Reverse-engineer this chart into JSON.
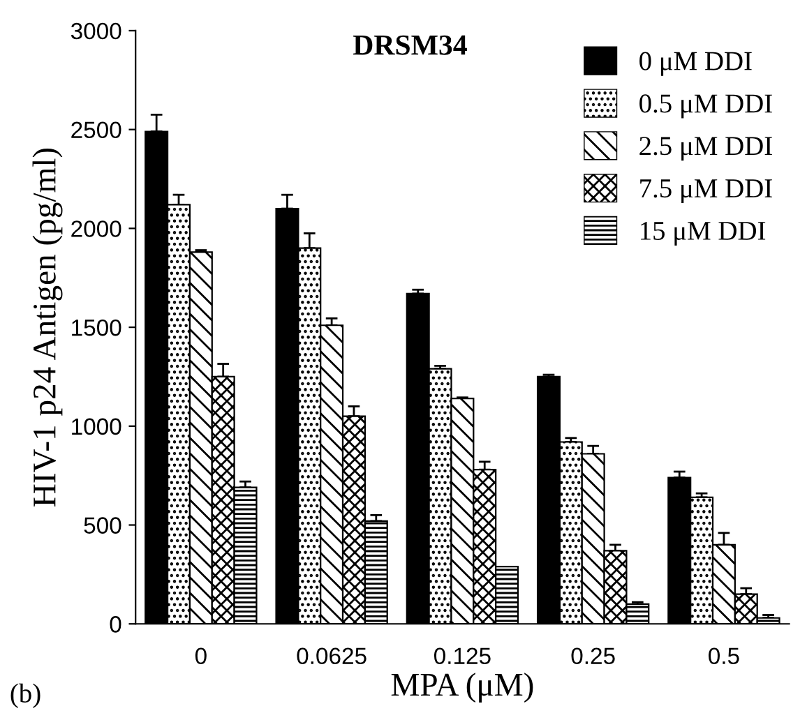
{
  "chart_data": {
    "type": "bar",
    "title": "DRSM34",
    "xlabel": "MPA (μM)",
    "ylabel": "HIV-1 p24 Antigen (pg/ml)",
    "categories": [
      "0",
      "0.0625",
      "0.125",
      "0.25",
      "0.5"
    ],
    "series": [
      {
        "name": "0 μM DDI",
        "color": "#000000",
        "values": [
          2490,
          2100,
          1670,
          1250,
          740
        ],
        "errors": [
          [
            2490,
            2575
          ],
          [
            2100,
            2170
          ],
          [
            1670,
            1690
          ],
          [
            1250,
            1260
          ],
          [
            740,
            770
          ]
        ]
      },
      {
        "name": "0.5 μM DDI",
        "color": "#000000",
        "values": [
          2120,
          1900,
          1290,
          920,
          640
        ],
        "errors": [
          [
            2120,
            2170
          ],
          [
            1900,
            1975
          ],
          [
            1290,
            1305
          ],
          [
            920,
            940
          ],
          [
            640,
            660
          ]
        ]
      },
      {
        "name": "2.5 μM DDI",
        "color": "#000000",
        "values": [
          1880,
          1510,
          1140,
          860,
          400
        ],
        "errors": [
          [
            1880,
            1890
          ],
          [
            1510,
            1545
          ],
          [
            1140,
            1145
          ],
          [
            860,
            900
          ],
          [
            400,
            460
          ]
        ]
      },
      {
        "name": "7.5 μM DDI",
        "color": "#000000",
        "values": [
          1250,
          1050,
          780,
          370,
          150
        ],
        "errors": [
          [
            1250,
            1315
          ],
          [
            1050,
            1100
          ],
          [
            780,
            820
          ],
          [
            370,
            400
          ],
          [
            150,
            180
          ]
        ]
      },
      {
        "name": "15 μM DDI",
        "color": "#000000",
        "values": [
          690,
          520,
          290,
          100,
          30
        ],
        "errors": [
          [
            690,
            720
          ],
          [
            520,
            550
          ],
          null,
          [
            100,
            110
          ],
          [
            30,
            45
          ]
        ]
      }
    ],
    "ylim": [
      0,
      3000
    ],
    "yticks": [
      0,
      500,
      1000,
      1500,
      2000,
      2500,
      3000
    ],
    "grid": false,
    "legend": "top right",
    "annotations": [
      "(b)"
    ]
  }
}
